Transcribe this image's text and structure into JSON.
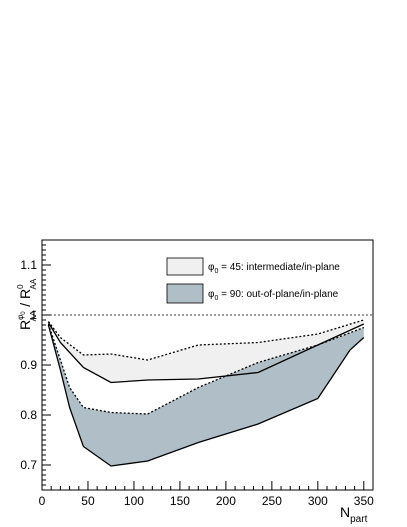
{
  "chart_data": {
    "type": "area",
    "x_axis": {
      "label_main": "N",
      "label_sub": "part",
      "range": [
        0,
        360
      ],
      "ticks": [
        0,
        50,
        100,
        150,
        200,
        250,
        300,
        350
      ]
    },
    "y_axis": {
      "label_main": "R",
      "label_sup1": "φ",
      "label_sup1_sub": "0",
      "label_sub1": "AA",
      "label_sep": " / R",
      "label_sup2": "0",
      "label_sub2": "AA",
      "range": [
        0.65,
        1.15
      ],
      "ticks": [
        0.7,
        0.8,
        0.9,
        1.0,
        1.1
      ],
      "tick_labels": [
        "0.7",
        "0.8",
        "0.9",
        "1",
        "1.1"
      ]
    },
    "reference_line": {
      "y": 1.0,
      "style": "dotted"
    },
    "legend": {
      "placement": "top-right",
      "entries": [
        {
          "sym": "φ",
          "sub": "0",
          "text": " = 45: intermediate/in-plane"
        },
        {
          "sym": "φ",
          "sub": "0",
          "text": " = 90: out-of-plane/in-plane"
        }
      ]
    },
    "series": [
      {
        "id": "phi45",
        "fill_color": "#f0f0f0",
        "upper": {
          "style": "dotted",
          "x": [
            7,
            20,
            45,
            75,
            115,
            170,
            235,
            300,
            350
          ],
          "y": [
            0.987,
            0.955,
            0.92,
            0.922,
            0.91,
            0.94,
            0.945,
            0.962,
            0.99
          ]
        },
        "lower": {
          "style": "solid",
          "x": [
            7,
            20,
            45,
            75,
            115,
            170,
            235,
            300,
            350
          ],
          "y": [
            0.985,
            0.945,
            0.895,
            0.865,
            0.87,
            0.872,
            0.885,
            0.94,
            0.982
          ]
        }
      },
      {
        "id": "phi90",
        "fill_color": "#b0bec8",
        "upper": {
          "style": "dotted",
          "x": [
            7,
            20,
            30,
            45,
            75,
            115,
            170,
            235,
            300,
            350
          ],
          "y": [
            0.982,
            0.91,
            0.855,
            0.815,
            0.805,
            0.802,
            0.855,
            0.905,
            0.94,
            0.975
          ]
        },
        "lower": {
          "style": "solid",
          "x": [
            7,
            20,
            30,
            45,
            75,
            115,
            170,
            235,
            300,
            335,
            350
          ],
          "y": [
            0.98,
            0.89,
            0.815,
            0.737,
            0.698,
            0.708,
            0.745,
            0.782,
            0.833,
            0.93,
            0.955
          ]
        }
      }
    ]
  }
}
